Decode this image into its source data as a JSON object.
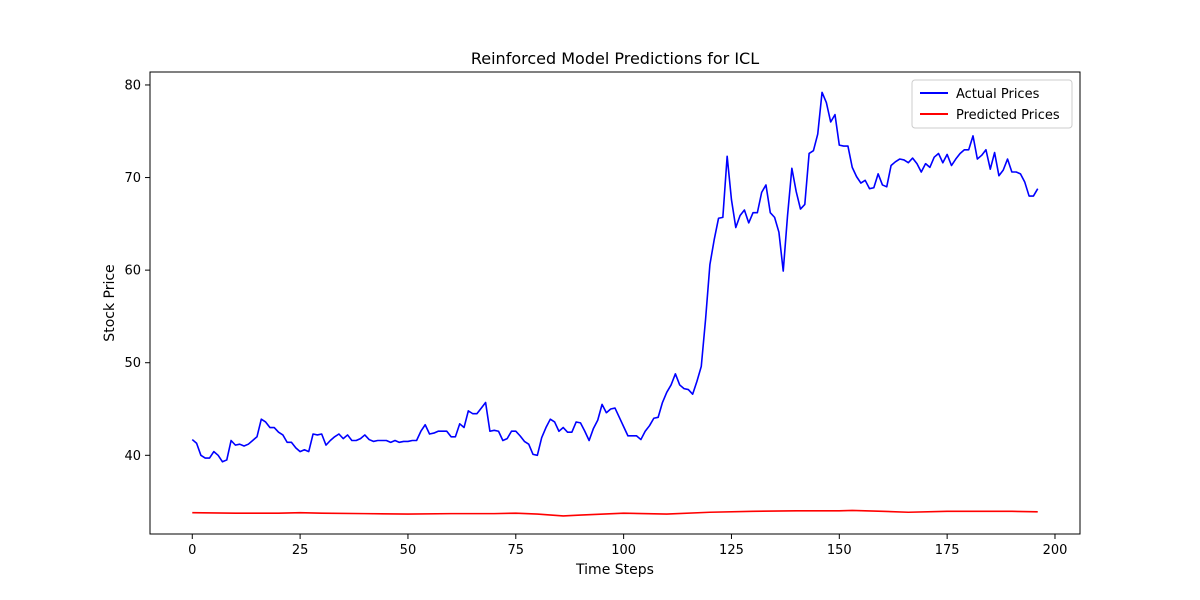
{
  "chart_data": {
    "type": "line",
    "title": "Reinforced Model Predictions for ICL",
    "xlabel": "Time Steps",
    "ylabel": "Stock Price",
    "xlim": [
      -9.8,
      205.8
    ],
    "ylim": [
      31.5,
      81.4
    ],
    "xticks": [
      0,
      25,
      50,
      75,
      100,
      125,
      150,
      175,
      200
    ],
    "yticks": [
      40,
      50,
      60,
      70,
      80
    ],
    "grid": false,
    "legend_position": "top-right",
    "series": [
      {
        "name": "Actual Prices",
        "color": "#0000ff",
        "x": [
          0,
          1,
          2,
          3,
          4,
          5,
          6,
          7,
          8,
          9,
          10,
          11,
          12,
          13,
          14,
          15,
          16,
          17,
          18,
          19,
          20,
          21,
          22,
          23,
          24,
          25,
          26,
          27,
          28,
          29,
          30,
          31,
          32,
          33,
          34,
          35,
          36,
          37,
          38,
          39,
          40,
          41,
          42,
          43,
          44,
          45,
          46,
          47,
          48,
          49,
          50,
          51,
          52,
          53,
          54,
          55,
          56,
          57,
          58,
          59,
          60,
          61,
          62,
          63,
          64,
          65,
          66,
          67,
          68,
          69,
          70,
          71,
          72,
          73,
          74,
          75,
          76,
          77,
          78,
          79,
          80,
          81,
          82,
          83,
          84,
          85,
          86,
          87,
          88,
          89,
          90,
          91,
          92,
          93,
          94,
          95,
          96,
          97,
          98,
          99,
          100,
          101,
          102,
          103,
          104,
          105,
          106,
          107,
          108,
          109,
          110,
          111,
          112,
          113,
          114,
          115,
          116,
          117,
          118,
          119,
          120,
          121,
          122,
          123,
          124,
          125,
          126,
          127,
          128,
          129,
          130,
          131,
          132,
          133,
          134,
          135,
          136,
          137,
          138,
          139,
          140,
          141,
          142,
          143,
          144,
          145,
          146,
          147,
          148,
          149,
          150,
          151,
          152,
          153,
          154,
          155,
          156,
          157,
          158,
          159,
          160,
          161,
          162,
          163,
          164,
          165,
          166,
          167,
          168,
          169,
          170,
          171,
          172,
          173,
          174,
          175,
          176,
          177,
          178,
          179,
          180,
          181,
          182,
          183,
          184,
          185,
          186,
          187,
          188,
          189,
          190,
          191,
          192,
          193,
          194,
          195,
          196
        ],
        "values": [
          41.7,
          41.3,
          40.0,
          39.7,
          39.7,
          40.4,
          40.0,
          39.3,
          39.5,
          41.6,
          41.1,
          41.2,
          41.0,
          41.2,
          41.6,
          42.0,
          43.9,
          43.6,
          43.0,
          43.0,
          42.5,
          42.2,
          41.4,
          41.4,
          40.8,
          40.4,
          40.6,
          40.4,
          42.3,
          42.2,
          42.3,
          41.1,
          41.6,
          42.0,
          42.3,
          41.8,
          42.2,
          41.6,
          41.6,
          41.8,
          42.2,
          41.7,
          41.5,
          41.6,
          41.6,
          41.6,
          41.4,
          41.6,
          41.4,
          41.5,
          41.5,
          41.6,
          41.6,
          42.6,
          43.3,
          42.3,
          42.4,
          42.6,
          42.6,
          42.6,
          42.0,
          42.0,
          43.4,
          43.0,
          44.8,
          44.5,
          44.5,
          45.1,
          45.7,
          42.6,
          42.7,
          42.6,
          41.6,
          41.8,
          42.6,
          42.6,
          42.1,
          41.5,
          41.2,
          40.1,
          40.0,
          41.9,
          43.0,
          43.9,
          43.6,
          42.6,
          43.0,
          42.5,
          42.5,
          43.6,
          43.5,
          42.6,
          41.6,
          42.9,
          43.8,
          45.5,
          44.6,
          45.0,
          45.1,
          44.1,
          43.1,
          42.1,
          42.1,
          42.1,
          41.7,
          42.6,
          43.2,
          44.0,
          44.1,
          45.7,
          46.8,
          47.6,
          48.8,
          47.6,
          47.2,
          47.1,
          46.6,
          48.0,
          49.6,
          54.7,
          60.6,
          63.3,
          65.6,
          65.7,
          72.3,
          67.6,
          64.6,
          65.9,
          66.5,
          65.1,
          66.2,
          66.2,
          68.4,
          69.2,
          66.2,
          65.7,
          64.1,
          59.9,
          65.9,
          71.0,
          68.5,
          66.6,
          67.1,
          72.6,
          72.9,
          74.7,
          79.2,
          78.1,
          76.0,
          76.8,
          73.5,
          73.4,
          73.4,
          71.1,
          70.1,
          69.4,
          69.7,
          68.8,
          68.9,
          70.4,
          69.2,
          69.0,
          71.3,
          71.7,
          72.0,
          71.9,
          71.6,
          72.1,
          71.5,
          70.6,
          71.5,
          71.1,
          72.2,
          72.6,
          71.6,
          72.5,
          71.3,
          72.0,
          72.6,
          73.0,
          73.0,
          74.5,
          72.0,
          72.4,
          73.0,
          70.9,
          72.7,
          70.2,
          70.8,
          72.0,
          70.6,
          70.6,
          70.4,
          69.5,
          68.0,
          68.0,
          68.8
        ]
      },
      {
        "name": "Predicted Prices",
        "color": "#ff0000",
        "x": [
          0,
          10,
          20,
          25,
          30,
          40,
          50,
          60,
          70,
          75,
          80,
          86,
          90,
          100,
          110,
          120,
          130,
          140,
          150,
          153,
          160,
          166,
          175,
          180,
          185,
          190,
          196
        ],
        "values": [
          33.8,
          33.75,
          33.75,
          33.8,
          33.75,
          33.7,
          33.65,
          33.7,
          33.7,
          33.75,
          33.65,
          33.45,
          33.55,
          33.75,
          33.65,
          33.85,
          33.95,
          34.0,
          34.0,
          34.05,
          33.95,
          33.85,
          33.95,
          33.95,
          33.95,
          33.95,
          33.9
        ]
      }
    ]
  }
}
